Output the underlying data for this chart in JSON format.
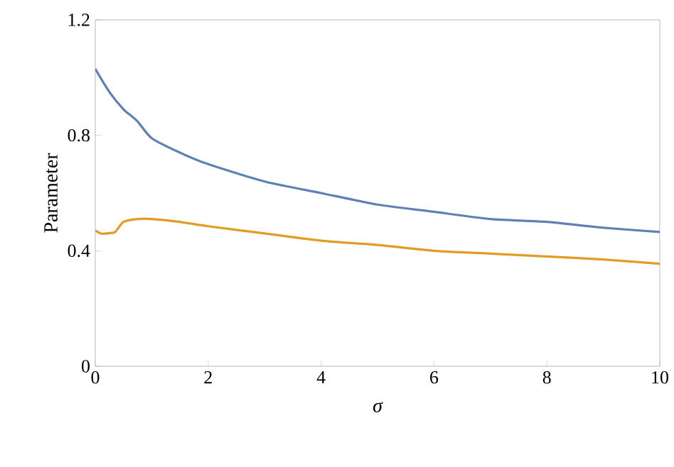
{
  "chart_data": {
    "type": "line",
    "xlabel": "σ",
    "ylabel": "Parameter",
    "xlim": [
      0,
      10
    ],
    "ylim": [
      0,
      1.2
    ],
    "xticks": [
      0,
      2,
      4,
      6,
      8,
      10
    ],
    "yticks": [
      0,
      0.4,
      0.8,
      1.2
    ],
    "series": [
      {
        "color": "#5e81b5",
        "x": [
          0,
          0.25,
          0.5,
          0.74,
          1,
          1.5,
          2,
          3,
          4,
          5,
          6,
          7,
          8,
          9,
          10
        ],
        "values": [
          1.03,
          0.95,
          0.89,
          0.85,
          0.79,
          0.74,
          0.7,
          0.64,
          0.6,
          0.56,
          0.535,
          0.51,
          0.5,
          0.48,
          0.465
        ]
      },
      {
        "color": "#e19c24",
        "x": [
          0,
          0.1,
          0.2,
          0.35,
          0.5,
          0.75,
          1,
          1.5,
          2,
          3,
          4,
          5,
          6,
          7,
          8,
          9,
          10
        ],
        "values": [
          0.47,
          0.46,
          0.46,
          0.465,
          0.5,
          0.51,
          0.51,
          0.5,
          0.485,
          0.46,
          0.435,
          0.42,
          0.4,
          0.39,
          0.38,
          0.37,
          0.355
        ]
      }
    ]
  }
}
